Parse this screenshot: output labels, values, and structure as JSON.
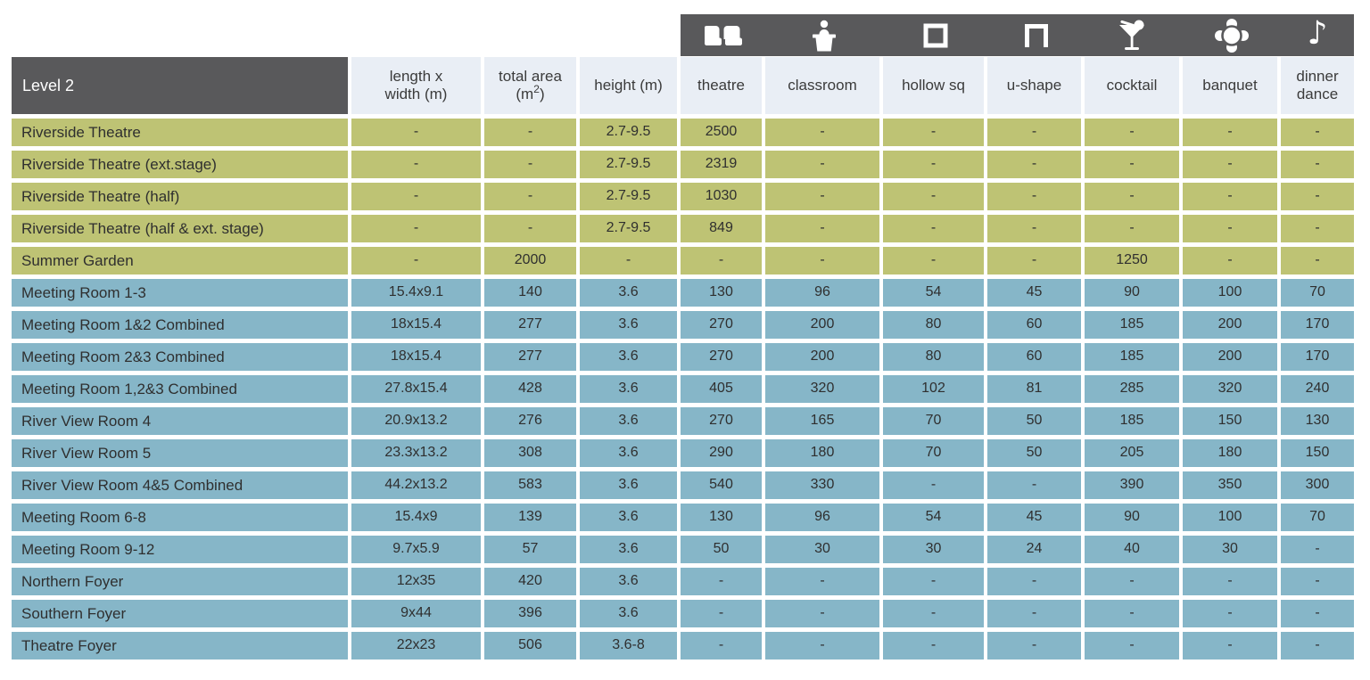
{
  "labels": {
    "level": "Level 2",
    "length_width_line1": "length x",
    "length_width_line2": "width (m)",
    "total_area_line1": "total area",
    "total_area_line2_pre": "(m",
    "total_area_sup": "2",
    "total_area_line2_post": ")",
    "height": "height (m)",
    "theatre": "theatre",
    "classroom": "classroom",
    "hollow_sq": "hollow sq",
    "u_shape": "u-shape",
    "cocktail": "cocktail",
    "banquet": "banquet",
    "dinner_line1": "dinner",
    "dinner_line2": "dance"
  },
  "icons": {
    "theatre": "theatre-seats-icon",
    "classroom": "lectern-speaker-icon",
    "hollow_sq": "hollow-square-icon",
    "u_shape": "u-shape-icon",
    "cocktail": "cocktail-glass-icon",
    "banquet": "round-table-seating-icon",
    "dinner_dance": "music-note-icon",
    "music_note_glyph": "♪"
  },
  "colors": {
    "bar_dark": "#59595b",
    "header_light_blue": "#e9eef5",
    "row_green": "#bec374",
    "row_blue": "#86b6c8",
    "icon_white": "#ffffff",
    "text_dark": "#2f2f2f"
  },
  "chart_data": {
    "type": "table",
    "title": "Level 2",
    "columns": [
      "length x width (m)",
      "total area (m2)",
      "height (m)",
      "theatre",
      "classroom",
      "hollow sq",
      "u-shape",
      "cocktail",
      "banquet",
      "dinner dance"
    ],
    "rows": [
      {
        "name": "Riverside Theatre",
        "group": "green",
        "values": [
          "-",
          "-",
          "2.7-9.5",
          "2500",
          "-",
          "-",
          "-",
          "-",
          "-",
          "-"
        ]
      },
      {
        "name": "Riverside Theatre (ext.stage)",
        "group": "green",
        "values": [
          "-",
          "-",
          "2.7-9.5",
          "2319",
          "-",
          "-",
          "-",
          "-",
          "-",
          "-"
        ]
      },
      {
        "name": "Riverside Theatre (half)",
        "group": "green",
        "values": [
          "-",
          "-",
          "2.7-9.5",
          "1030",
          "-",
          "-",
          "-",
          "-",
          "-",
          "-"
        ]
      },
      {
        "name": "Riverside Theatre (half & ext. stage)",
        "group": "green",
        "values": [
          "-",
          "-",
          "2.7-9.5",
          "849",
          "-",
          "-",
          "-",
          "-",
          "-",
          "-"
        ]
      },
      {
        "name": "Summer Garden",
        "group": "green",
        "values": [
          "-",
          "2000",
          "-",
          "-",
          "-",
          "-",
          "-",
          "1250",
          "-",
          "-"
        ]
      },
      {
        "name": "Meeting Room 1-3",
        "group": "blue",
        "values": [
          "15.4x9.1",
          "140",
          "3.6",
          "130",
          "96",
          "54",
          "45",
          "90",
          "100",
          "70"
        ]
      },
      {
        "name": "Meeting Room 1&2 Combined",
        "group": "blue",
        "values": [
          "18x15.4",
          "277",
          "3.6",
          "270",
          "200",
          "80",
          "60",
          "185",
          "200",
          "170"
        ]
      },
      {
        "name": "Meeting Room 2&3 Combined",
        "group": "blue",
        "values": [
          "18x15.4",
          "277",
          "3.6",
          "270",
          "200",
          "80",
          "60",
          "185",
          "200",
          "170"
        ]
      },
      {
        "name": "Meeting Room 1,2&3 Combined",
        "group": "blue",
        "values": [
          "27.8x15.4",
          "428",
          "3.6",
          "405",
          "320",
          "102",
          "81",
          "285",
          "320",
          "240"
        ]
      },
      {
        "name": "River View Room 4",
        "group": "blue",
        "values": [
          "20.9x13.2",
          "276",
          "3.6",
          "270",
          "165",
          "70",
          "50",
          "185",
          "150",
          "130"
        ]
      },
      {
        "name": "River View Room 5",
        "group": "blue",
        "values": [
          "23.3x13.2",
          "308",
          "3.6",
          "290",
          "180",
          "70",
          "50",
          "205",
          "180",
          "150"
        ]
      },
      {
        "name": "River View Room 4&5 Combined",
        "group": "blue",
        "values": [
          "44.2x13.2",
          "583",
          "3.6",
          "540",
          "330",
          "-",
          "-",
          "390",
          "350",
          "300"
        ]
      },
      {
        "name": "Meeting Room 6-8",
        "group": "blue",
        "values": [
          "15.4x9",
          "139",
          "3.6",
          "130",
          "96",
          "54",
          "45",
          "90",
          "100",
          "70"
        ]
      },
      {
        "name": "Meeting Room 9-12",
        "group": "blue",
        "values": [
          "9.7x5.9",
          "57",
          "3.6",
          "50",
          "30",
          "30",
          "24",
          "40",
          "30",
          "-"
        ]
      },
      {
        "name": "Northern Foyer",
        "group": "blue",
        "values": [
          "12x35",
          "420",
          "3.6",
          "-",
          "-",
          "-",
          "-",
          "-",
          "-",
          "-"
        ]
      },
      {
        "name": "Southern Foyer",
        "group": "blue",
        "values": [
          "9x44",
          "396",
          "3.6",
          "-",
          "-",
          "-",
          "-",
          "-",
          "-",
          "-"
        ]
      },
      {
        "name": "Theatre Foyer",
        "group": "blue",
        "values": [
          "22x23",
          "506",
          "3.6-8",
          "-",
          "-",
          "-",
          "-",
          "-",
          "-",
          "-"
        ]
      }
    ]
  }
}
